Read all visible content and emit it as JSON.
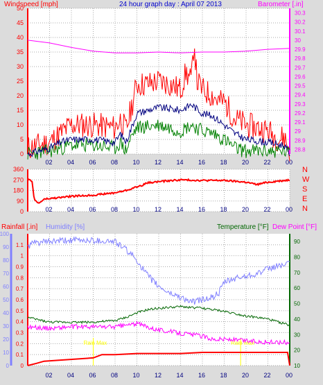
{
  "colors": {
    "red": "#ff0000",
    "blue": "#0000cc",
    "navy": "#000080",
    "magenta": "#ff00ff",
    "green": "#008000",
    "purple": "#8080ff",
    "darkgreen": "#006600",
    "yellow": "#ffff00",
    "grid": "#a8a8a8",
    "bg": "#ffffff"
  },
  "header": {
    "left": "Windspeed [mph]",
    "center": "24 hour graph day : April 07 2013",
    "right": "Barometer [.in]"
  },
  "x_ticks": [
    "02",
    "04",
    "06",
    "08",
    "10",
    "12",
    "14",
    "16",
    "18",
    "20",
    "22",
    "00"
  ],
  "chart_data": [
    {
      "type": "line",
      "name": "wind",
      "y_ticks": [
        "0",
        "5",
        "10",
        "15",
        "20",
        "25",
        "30",
        "35",
        "40",
        "45",
        "50"
      ],
      "y2_ticks": [
        "28.8",
        "28.9",
        "29",
        "29.1",
        "29.2",
        "29.3",
        "29.4",
        "29.5",
        "29.6",
        "29.7",
        "29.8",
        "29.9",
        "30",
        "30.1",
        "30.2",
        "30.3"
      ],
      "ylim": [
        0,
        50
      ],
      "y2lim": [
        28.75,
        30.35
      ],
      "series": [
        {
          "name": "gust",
          "x": [
            0,
            2,
            3,
            4,
            6,
            8,
            8.5,
            9,
            9.5,
            10,
            11,
            12,
            13,
            14,
            14.5,
            15,
            15.25,
            15.5,
            16,
            17,
            17.5,
            18,
            19,
            20,
            21,
            22,
            23,
            23.5,
            24
          ],
          "y": [
            2,
            4,
            7,
            10,
            10,
            9,
            12,
            8,
            16,
            24,
            24,
            25,
            24,
            22,
            28,
            25,
            39,
            25,
            22,
            20,
            18,
            18,
            12,
            10,
            9,
            8,
            5,
            6,
            1
          ]
        },
        {
          "name": "average",
          "x": [
            0,
            2,
            3,
            4,
            6,
            8,
            8.5,
            9,
            9.5,
            10,
            12,
            14,
            15,
            16,
            17,
            18,
            19,
            20,
            22,
            23.5,
            24
          ],
          "y": [
            0,
            2,
            4,
            5,
            5,
            4,
            7,
            4,
            9,
            14,
            16,
            15,
            17,
            14,
            13,
            10,
            7,
            5,
            4,
            3,
            0
          ]
        },
        {
          "name": "minimum",
          "x": [
            0,
            2,
            3,
            4,
            6,
            8,
            8.5,
            9,
            9.5,
            10,
            12,
            14,
            15,
            16,
            17,
            18,
            19,
            20,
            22,
            23.5,
            24
          ],
          "y": [
            0,
            1,
            2,
            3,
            3,
            2,
            4,
            1,
            6,
            9,
            10,
            8,
            10,
            8,
            7,
            5,
            2,
            1,
            1,
            1,
            0
          ]
        },
        {
          "name": "barometer",
          "x": [
            0,
            2,
            4,
            6,
            8,
            10,
            12,
            14,
            16,
            18,
            20,
            22,
            24
          ],
          "y": [
            30.0,
            29.97,
            29.92,
            29.88,
            29.86,
            29.86,
            29.87,
            29.86,
            29.87,
            29.87,
            29.88,
            29.9,
            29.91
          ]
        }
      ]
    },
    {
      "type": "line",
      "name": "wind_direction",
      "y_ticks": [
        "0",
        "90",
        "180",
        "270",
        "360"
      ],
      "y_letters": [
        "N",
        "W",
        "S",
        "E",
        "N"
      ],
      "ylim": [
        0,
        360
      ],
      "series": [
        {
          "name": "direction",
          "x": [
            0,
            0.4,
            0.6,
            1,
            1.5,
            2,
            4,
            6,
            8,
            9,
            10,
            10.5,
            11,
            12,
            14,
            16,
            18,
            20,
            21,
            22,
            24
          ],
          "y": [
            270,
            260,
            100,
            70,
            105,
            110,
            130,
            140,
            160,
            180,
            210,
            225,
            245,
            255,
            270,
            265,
            265,
            250,
            230,
            250,
            270
          ]
        }
      ]
    },
    {
      "type": "line",
      "name": "temp_humidity_rain",
      "left_label": "Rainfall [.in]",
      "left2_label": "Humidity [%]",
      "right_label": "Temperature [°F]",
      "right2_label": "Dew Point [°F]",
      "rain_ticks": [
        "0",
        "0.1",
        "0.2",
        "0.3",
        "0.4",
        "0.5",
        "0.6",
        "0.7",
        "0.8",
        "0.9",
        "1",
        "1.1"
      ],
      "hum_ticks": [
        "0",
        "10",
        "20",
        "30",
        "40",
        "50",
        "60",
        "70",
        "80",
        "90",
        "100"
      ],
      "temp_ticks": [
        "10",
        "20",
        "30",
        "40",
        "50",
        "60",
        "70",
        "80",
        "90"
      ],
      "rain_lim": [
        0,
        1.2
      ],
      "hum_lim": [
        0,
        100
      ],
      "temp_lim": [
        10,
        95
      ],
      "rain_annotations": [
        {
          "x": 6,
          "label": "Rain Max"
        },
        {
          "x": 19.5,
          "label": "Rain Max"
        }
      ],
      "series": [
        {
          "name": "humidity",
          "x": [
            0,
            0.5,
            2,
            4,
            6,
            8,
            9,
            10,
            11,
            12,
            13,
            14,
            15,
            16,
            17,
            17.5,
            18,
            19,
            20,
            21,
            22,
            23,
            24
          ],
          "y": [
            90,
            93,
            94,
            95,
            95,
            94,
            88,
            80,
            68,
            60,
            55,
            52,
            48,
            50,
            52,
            55,
            63,
            66,
            68,
            70,
            73,
            76,
            77
          ]
        },
        {
          "name": "temperature",
          "x": [
            0,
            2,
            4,
            6,
            8,
            9,
            10,
            11,
            12,
            14,
            16,
            17,
            18,
            20,
            22,
            23,
            24
          ],
          "y": [
            41,
            38,
            38,
            38,
            39,
            41,
            44,
            46,
            47,
            48,
            47,
            46,
            45,
            42,
            40,
            38,
            36
          ]
        },
        {
          "name": "dewpoint",
          "x": [
            0,
            2,
            4,
            6,
            8,
            9,
            10,
            11,
            12,
            14,
            16,
            17,
            18,
            20,
            22,
            24
          ],
          "y": [
            35,
            34,
            35,
            35,
            35,
            36,
            37,
            35,
            33,
            31,
            29,
            27,
            27,
            26,
            25,
            25
          ]
        },
        {
          "name": "rainfall",
          "x": [
            0,
            0.8,
            1.5,
            3,
            6,
            6.8,
            8,
            10,
            12,
            14,
            16,
            18,
            20,
            22,
            23.8,
            24
          ],
          "y": [
            0,
            0.02,
            0.04,
            0.05,
            0.07,
            0.1,
            0.1,
            0.11,
            0.11,
            0.11,
            0.12,
            0.12,
            0.12,
            0.12,
            0.12,
            0
          ]
        }
      ]
    }
  ]
}
